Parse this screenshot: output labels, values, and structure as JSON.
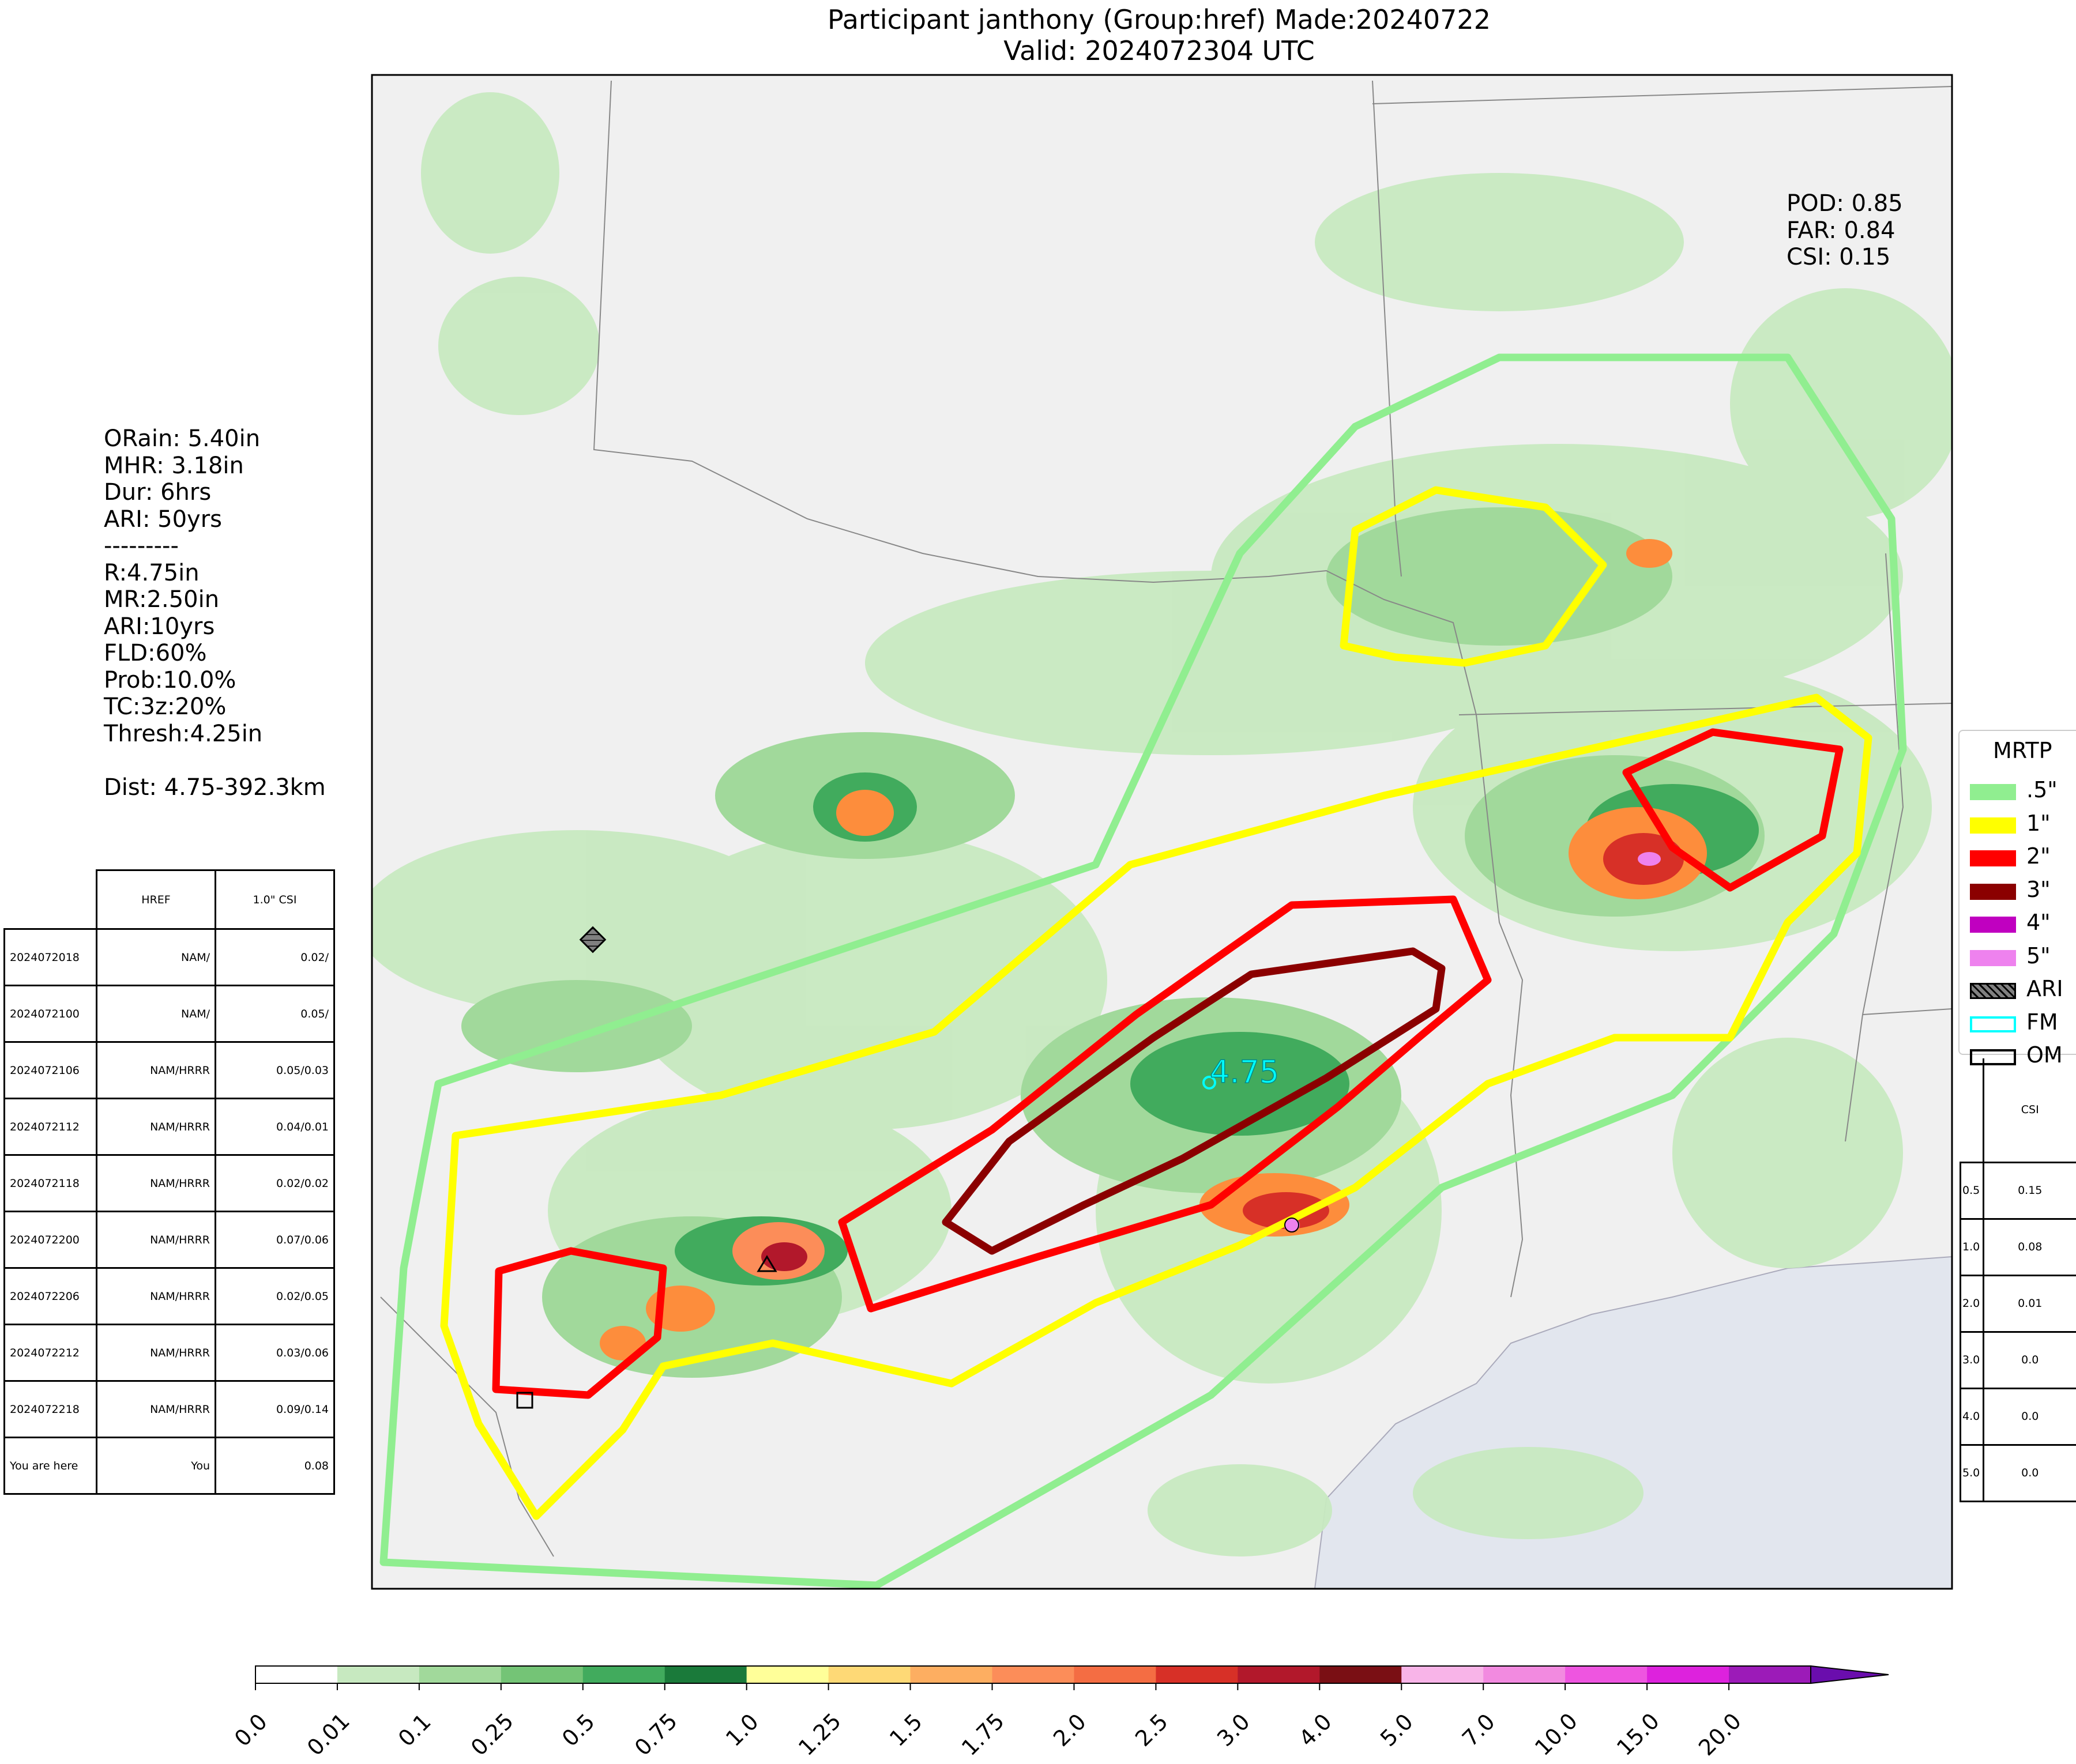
{
  "header": {
    "title_line1": "Participant janthony (Group:href) Made:20240722",
    "title_line2": "Valid: 2024072304 UTC"
  },
  "stats": {
    "lines": [
      "ORain: 5.40in",
      "MHR: 3.18in",
      "Dur: 6hrs",
      "ARI: 50yrs",
      "---------",
      "R:4.75in",
      "MR:2.50in",
      "ARI:10yrs",
      "FLD:60%",
      "Prob:10.0%",
      "TC:3z:20%",
      "Thresh:4.25in",
      "",
      "Dist: 4.75-392.3km"
    ]
  },
  "scores": {
    "pod": "POD: 0.85",
    "far": "FAR: 0.84",
    "csi": "CSI: 0.15"
  },
  "max_label": "4.75",
  "runs_table": {
    "headers": [
      "",
      "HREF",
      "1.0\" CSI"
    ],
    "rows": [
      [
        "2024072018",
        "NAM/",
        "0.02/"
      ],
      [
        "2024072100",
        "NAM/",
        "0.05/"
      ],
      [
        "2024072106",
        "NAM/HRRR",
        "0.05/0.03"
      ],
      [
        "2024072112",
        "NAM/HRRR",
        "0.04/0.01"
      ],
      [
        "2024072118",
        "NAM/HRRR",
        "0.02/0.02"
      ],
      [
        "2024072200",
        "NAM/HRRR",
        "0.07/0.06"
      ],
      [
        "2024072206",
        "NAM/HRRR",
        "0.02/0.05"
      ],
      [
        "2024072212",
        "NAM/HRRR",
        "0.03/0.06"
      ],
      [
        "2024072218",
        "NAM/HRRR",
        "0.09/0.14"
      ],
      [
        "You are here",
        "You",
        "0.08"
      ]
    ]
  },
  "csi_table": {
    "header": "CSI",
    "rows": [
      [
        "0.5",
        "0.15"
      ],
      [
        "1.0",
        "0.08"
      ],
      [
        "2.0",
        "0.01"
      ],
      [
        "3.0",
        "0.0"
      ],
      [
        "4.0",
        "0.0"
      ],
      [
        "5.0",
        "0.0"
      ]
    ]
  },
  "legend": {
    "title": "MRTP",
    "items": [
      {
        "label": ".5\"",
        "color": "#90ee90",
        "kind": "fill"
      },
      {
        "label": "1\"",
        "color": "#ffff00",
        "kind": "fill"
      },
      {
        "label": "2\"",
        "color": "#ff0000",
        "kind": "fill"
      },
      {
        "label": "3\"",
        "color": "#8b0000",
        "kind": "fill"
      },
      {
        "label": "4\"",
        "color": "#c000c0",
        "kind": "fill"
      },
      {
        "label": "5\"",
        "color": "#ee82ee",
        "kind": "fill"
      },
      {
        "label": "ARI",
        "color": "#808080",
        "kind": "hatch"
      },
      {
        "label": "FM",
        "color": "#00ffff",
        "kind": "outline"
      },
      {
        "label": "OM",
        "color": "#000000",
        "kind": "outline"
      }
    ]
  },
  "colorbar": {
    "ticks": [
      "0.0",
      "0.01",
      "0.1",
      "0.25",
      "0.5",
      "0.75",
      "1.0",
      "1.25",
      "1.5",
      "1.75",
      "2.0",
      "2.5",
      "3.0",
      "4.0",
      "5.0",
      "7.0",
      "10.0",
      "15.0",
      "20.0"
    ],
    "colors": [
      "#ffffff",
      "#c7e9c0",
      "#a1d99b",
      "#74c476",
      "#41ab5d",
      "#1a7a3a",
      "#ffff99",
      "#fed976",
      "#fdae61",
      "#fc8d59",
      "#f46d43",
      "#d73027",
      "#b2182b",
      "#7a0f14",
      "#f8b4e8",
      "#f28ae0",
      "#ee55e0",
      "#dd22dd",
      "#9c1bb8"
    ],
    "extend_color": "#6a0dad"
  },
  "contours": [
    {
      "level": ".5\"",
      "color": "#90ee90"
    },
    {
      "level": "1\"",
      "color": "#ffff00"
    },
    {
      "level": "2\"",
      "color": "#ff0000"
    },
    {
      "level": "3\"",
      "color": "#8b0000"
    }
  ]
}
